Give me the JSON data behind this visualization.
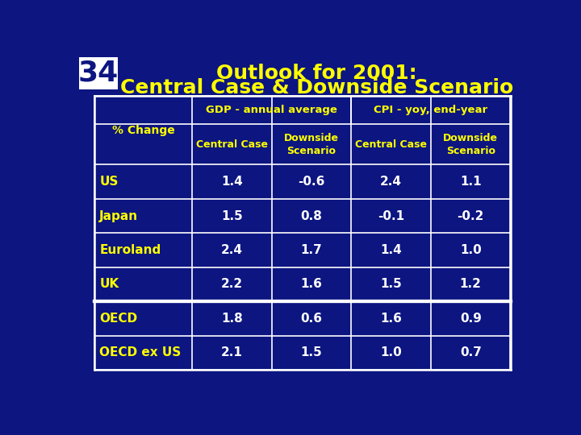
{
  "title_line1": "Outlook for 2001:",
  "title_line2": "Central Case & Downside Scenario",
  "slide_number": "34",
  "bg_color": "#0c1580",
  "cell_bg": "#0c1580",
  "title_color": "#ffff00",
  "header_color": "#ffff00",
  "data_color": "#ffffff",
  "row_label_color": "#ffff00",
  "border_color": "#ffffff",
  "num_box_bg": "#ffffff",
  "num_box_fg": "#0c1580",
  "col_headers_top": [
    "GDP - annual average",
    "CPI - yoy, end-year"
  ],
  "col_headers_sub": [
    "Central Case",
    "Downside\nScenario",
    "Central Case",
    "Downside\nScenario"
  ],
  "row_header": "% Change",
  "rows": [
    {
      "label": "US",
      "values": [
        "1.4",
        "-0.6",
        "2.4",
        "1.1"
      ]
    },
    {
      "label": "Japan",
      "values": [
        "1.5",
        "0.8",
        "-0.1",
        "-0.2"
      ]
    },
    {
      "label": "Euroland",
      "values": [
        "2.4",
        "1.7",
        "1.4",
        "1.0"
      ]
    },
    {
      "label": "UK",
      "values": [
        "2.2",
        "1.6",
        "1.5",
        "1.2"
      ]
    },
    {
      "label": "OECD",
      "values": [
        "1.8",
        "0.6",
        "1.6",
        "0.9"
      ]
    },
    {
      "label": "OECD ex US",
      "values": [
        "2.1",
        "1.5",
        "1.0",
        "0.7"
      ]
    }
  ]
}
